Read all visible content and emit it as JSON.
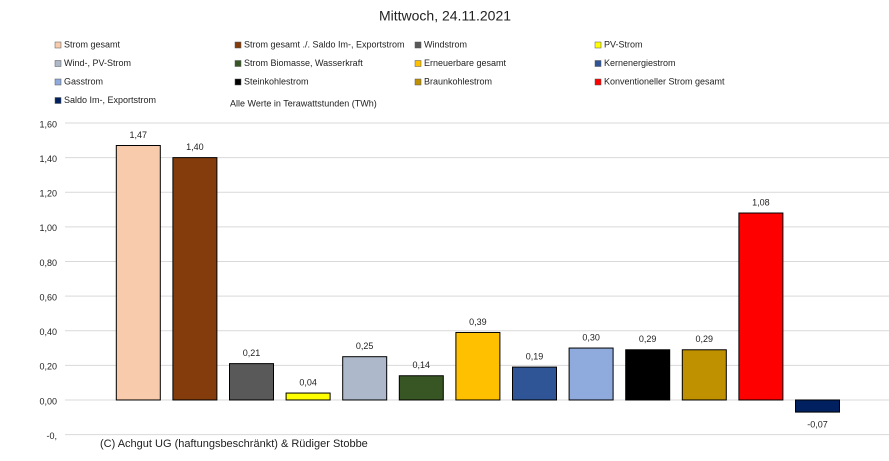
{
  "chart_data": {
    "type": "bar",
    "title": "Mittwoch, 24.11.2021",
    "subtitle": "Alle Werte in Terawattstunden (TWh)",
    "annotation": "(C) Achgut UG (haftungsbeschränkt) & Rüdiger Stobbe",
    "series": [
      {
        "name": "Strom gesamt",
        "color": "#f8cbad",
        "values": [
          1.47
        ],
        "value_labels": [
          "1,47"
        ]
      },
      {
        "name": "Strom gesamt ./. Saldo Im-, Exportstrom",
        "color": "#843c0c",
        "values": [
          1.4
        ],
        "value_labels": [
          "1,40"
        ]
      },
      {
        "name": "Windstrom",
        "color": "#595959",
        "values": [
          0.21
        ],
        "value_labels": [
          "0,21"
        ]
      },
      {
        "name": "PV-Strom",
        "color": "#ffff00",
        "values": [
          0.04
        ],
        "value_labels": [
          "0,04"
        ]
      },
      {
        "name": "Wind-, PV-Strom",
        "color": "#adb9ca",
        "values": [
          0.25
        ],
        "value_labels": [
          "0,25"
        ]
      },
      {
        "name": "Strom Biomasse, Wasserkraft",
        "color": "#375623",
        "values": [
          0.14
        ],
        "value_labels": [
          "0,14"
        ]
      },
      {
        "name": "Erneuerbare gesamt",
        "color": "#ffc000",
        "values": [
          0.39
        ],
        "value_labels": [
          "0,39"
        ]
      },
      {
        "name": "Kernenergiestrom",
        "color": "#2f5597",
        "values": [
          0.19
        ],
        "value_labels": [
          "0,19"
        ]
      },
      {
        "name": "Gasstrom",
        "color": "#8faadc",
        "values": [
          0.3
        ],
        "value_labels": [
          "0,30"
        ]
      },
      {
        "name": "Steinkohlestrom",
        "color": "#000000",
        "values": [
          0.29
        ],
        "value_labels": [
          "0,29"
        ]
      },
      {
        "name": "Braunkohlestrom",
        "color": "#bf9000",
        "values": [
          0.29
        ],
        "value_labels": [
          "0,29"
        ]
      },
      {
        "name": "Konventioneller Strom gesamt",
        "color": "#ff0000",
        "values": [
          1.08
        ],
        "value_labels": [
          "1,08"
        ]
      },
      {
        "name": "Saldo Im-, Exportstrom",
        "color": "#002060",
        "values": [
          -0.07
        ],
        "value_labels": [
          "-0,07"
        ]
      }
    ],
    "ylim": [
      -0.2,
      1.6
    ],
    "yticks": [
      {
        "value": -0.2,
        "label": "-0,"
      },
      {
        "value": 0,
        "label": "0,00"
      },
      {
        "value": 0.2,
        "label": "0,20"
      },
      {
        "value": 0.4,
        "label": "0,40"
      },
      {
        "value": 0.6,
        "label": "0,60"
      },
      {
        "value": 0.8,
        "label": "0,80"
      },
      {
        "value": 1.0,
        "label": "1,00"
      },
      {
        "value": 1.2,
        "label": "1,20"
      },
      {
        "value": 1.4,
        "label": "1,40"
      },
      {
        "value": 1.6,
        "label": "1,60"
      }
    ],
    "grid": true
  }
}
